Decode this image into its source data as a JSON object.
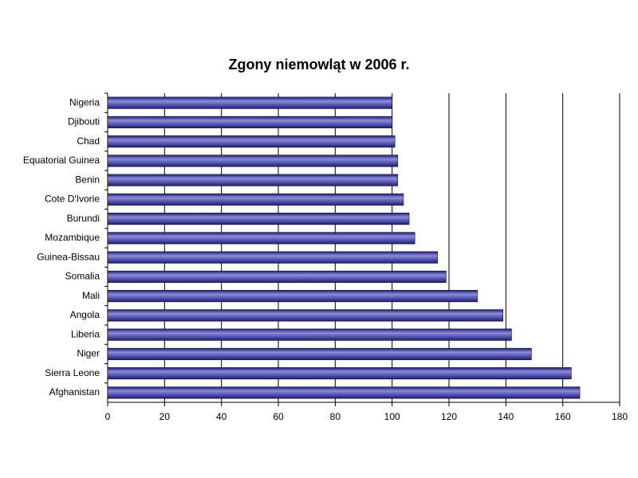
{
  "chart_data": {
    "type": "barh",
    "title": "Zgony niemowląt w 2006 r.",
    "categories": [
      "Nigeria",
      "Djibouti",
      "Chad",
      "Equatorial Guinea",
      "Benin",
      "Cote D'Ivorie",
      "Burundi",
      "Mozambique",
      "Guinea-Bissau",
      "Somalia",
      "Mali",
      "Angola",
      "Liberia",
      "Niger",
      "Sierra Leone",
      "Afghanistan"
    ],
    "values": [
      100,
      100,
      101,
      102,
      102,
      104,
      106,
      108,
      116,
      119,
      130,
      139,
      142,
      149,
      163,
      166
    ],
    "color": "#1c1c80",
    "xlim": [
      0,
      180
    ],
    "xticks": [
      0,
      20,
      40,
      60,
      80,
      100,
      120,
      140,
      160,
      180
    ],
    "grid": true
  }
}
